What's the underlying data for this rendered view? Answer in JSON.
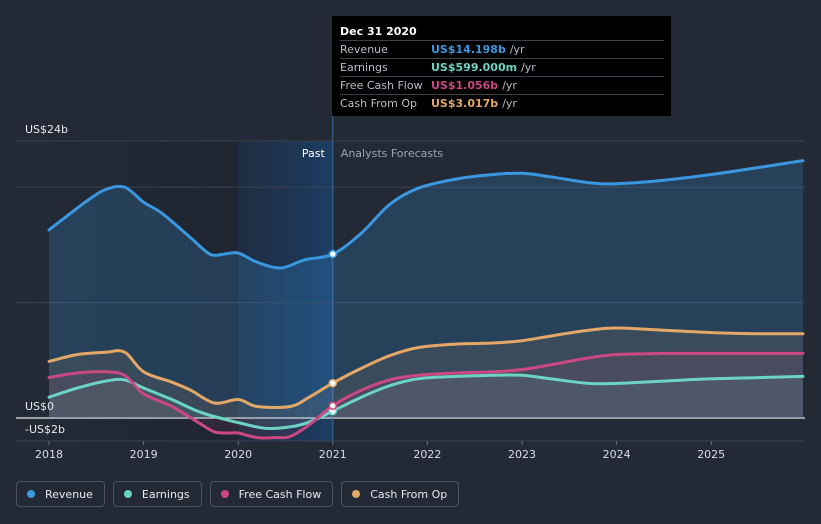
{
  "chart_data": {
    "type": "line",
    "x_ticks": [
      "2018",
      "2019",
      "2020",
      "2021",
      "2022",
      "2023",
      "2024",
      "2025"
    ],
    "y_tick_labels": [
      "US$24b",
      "US$0",
      "-US$2b"
    ],
    "ylim": [
      -2,
      24
    ],
    "period_labels": {
      "past": "Past",
      "forecast": "Analysts Forecasts"
    },
    "divider_x": 2021.0,
    "series": [
      {
        "name": "Revenue",
        "color": "#3b97e0",
        "points": [
          [
            2018.0,
            16.3
          ],
          [
            2018.4,
            18.8
          ],
          [
            2018.6,
            19.8
          ],
          [
            2018.8,
            20.0
          ],
          [
            2019.0,
            18.7
          ],
          [
            2019.2,
            17.7
          ],
          [
            2019.5,
            15.6
          ],
          [
            2019.7,
            14.2
          ],
          [
            2019.85,
            14.2
          ],
          [
            2020.0,
            14.3
          ],
          [
            2020.2,
            13.5
          ],
          [
            2020.45,
            13.0
          ],
          [
            2020.7,
            13.7
          ],
          [
            2021.0,
            14.2
          ],
          [
            2021.3,
            16.0
          ],
          [
            2021.6,
            18.5
          ],
          [
            2021.9,
            19.9
          ],
          [
            2022.3,
            20.7
          ],
          [
            2022.7,
            21.1
          ],
          [
            2023.0,
            21.2
          ],
          [
            2023.3,
            20.9
          ],
          [
            2023.7,
            20.4
          ],
          [
            2024.0,
            20.3
          ],
          [
            2024.5,
            20.6
          ],
          [
            2025.0,
            21.1
          ],
          [
            2025.5,
            21.7
          ],
          [
            2025.97,
            22.3
          ]
        ]
      },
      {
        "name": "Earnings",
        "color": "#6cd3c5",
        "points": [
          [
            2018.0,
            1.8
          ],
          [
            2018.3,
            2.6
          ],
          [
            2018.6,
            3.2
          ],
          [
            2018.8,
            3.3
          ],
          [
            2019.0,
            2.6
          ],
          [
            2019.3,
            1.6
          ],
          [
            2019.6,
            0.5
          ],
          [
            2019.9,
            -0.2
          ],
          [
            2020.0,
            -0.4
          ],
          [
            2020.3,
            -0.9
          ],
          [
            2020.6,
            -0.7
          ],
          [
            2020.8,
            -0.2
          ],
          [
            2021.0,
            0.6
          ],
          [
            2021.3,
            1.8
          ],
          [
            2021.6,
            2.8
          ],
          [
            2021.9,
            3.4
          ],
          [
            2022.3,
            3.6
          ],
          [
            2022.7,
            3.7
          ],
          [
            2023.0,
            3.7
          ],
          [
            2023.3,
            3.4
          ],
          [
            2023.7,
            3.0
          ],
          [
            2024.0,
            3.0
          ],
          [
            2024.5,
            3.2
          ],
          [
            2025.0,
            3.4
          ],
          [
            2025.5,
            3.5
          ],
          [
            2025.97,
            3.6
          ]
        ]
      },
      {
        "name": "Free Cash Flow",
        "color": "#cc4883",
        "points": [
          [
            2018.0,
            3.5
          ],
          [
            2018.3,
            3.9
          ],
          [
            2018.6,
            4.0
          ],
          [
            2018.8,
            3.7
          ],
          [
            2019.0,
            2.1
          ],
          [
            2019.3,
            1.0
          ],
          [
            2019.6,
            -0.5
          ],
          [
            2019.75,
            -1.2
          ],
          [
            2019.9,
            -1.3
          ],
          [
            2020.0,
            -1.3
          ],
          [
            2020.2,
            -1.7
          ],
          [
            2020.4,
            -1.7
          ],
          [
            2020.55,
            -1.6
          ],
          [
            2020.75,
            -0.6
          ],
          [
            2021.0,
            1.06
          ],
          [
            2021.3,
            2.4
          ],
          [
            2021.6,
            3.3
          ],
          [
            2021.9,
            3.7
          ],
          [
            2022.3,
            3.9
          ],
          [
            2022.7,
            4.0
          ],
          [
            2023.0,
            4.2
          ],
          [
            2023.3,
            4.6
          ],
          [
            2023.7,
            5.2
          ],
          [
            2024.0,
            5.5
          ],
          [
            2024.5,
            5.6
          ],
          [
            2025.0,
            5.6
          ],
          [
            2025.5,
            5.6
          ],
          [
            2025.97,
            5.6
          ]
        ]
      },
      {
        "name": "Cash From Op",
        "color": "#e3a868",
        "points": [
          [
            2018.0,
            4.9
          ],
          [
            2018.3,
            5.5
          ],
          [
            2018.6,
            5.7
          ],
          [
            2018.8,
            5.7
          ],
          [
            2019.0,
            4.0
          ],
          [
            2019.3,
            3.1
          ],
          [
            2019.5,
            2.4
          ],
          [
            2019.75,
            1.3
          ],
          [
            2020.0,
            1.6
          ],
          [
            2020.2,
            1.0
          ],
          [
            2020.55,
            1.0
          ],
          [
            2020.75,
            1.8
          ],
          [
            2021.0,
            3.02
          ],
          [
            2021.3,
            4.3
          ],
          [
            2021.6,
            5.4
          ],
          [
            2021.9,
            6.1
          ],
          [
            2022.3,
            6.4
          ],
          [
            2022.7,
            6.5
          ],
          [
            2023.0,
            6.7
          ],
          [
            2023.3,
            7.1
          ],
          [
            2023.7,
            7.6
          ],
          [
            2024.0,
            7.8
          ],
          [
            2024.5,
            7.6
          ],
          [
            2025.0,
            7.4
          ],
          [
            2025.5,
            7.3
          ],
          [
            2025.97,
            7.3
          ]
        ]
      }
    ]
  },
  "tooltip": {
    "date": "Dec 31 2020",
    "rows": [
      {
        "name": "Revenue",
        "value": "US$14.198b",
        "unit": "/yr",
        "color": "#3b97e0"
      },
      {
        "name": "Earnings",
        "value": "US$599.000m",
        "unit": "/yr",
        "color": "#6cd3c5"
      },
      {
        "name": "Free Cash Flow",
        "value": "US$1.056b",
        "unit": "/yr",
        "color": "#cc4883"
      },
      {
        "name": "Cash From Op",
        "value": "US$3.017b",
        "unit": "/yr",
        "color": "#e3a868"
      }
    ]
  },
  "legend": [
    {
      "label": "Revenue",
      "color": "#3b97e0"
    },
    {
      "label": "Earnings",
      "color": "#6cd3c5"
    },
    {
      "label": "Free Cash Flow",
      "color": "#cc4883"
    },
    {
      "label": "Cash From Op",
      "color": "#e3a868"
    }
  ]
}
